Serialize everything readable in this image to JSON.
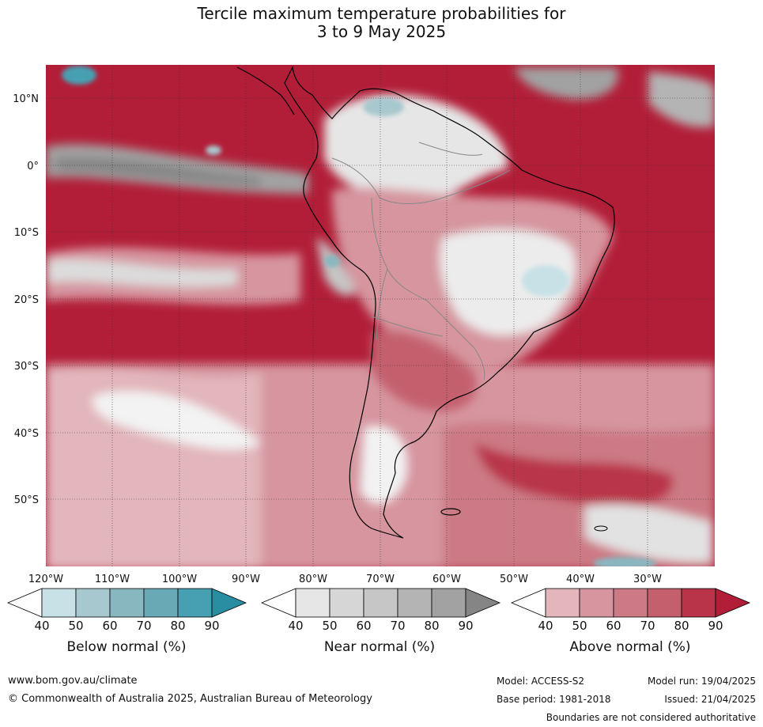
{
  "title": {
    "line1": "Tercile maximum temperature probabilities for",
    "line2": "3 to 9 May 2025"
  },
  "map": {
    "lat_labels": [
      "10°N",
      "0°",
      "10°S",
      "20°S",
      "30°S",
      "40°S",
      "50°S"
    ],
    "lon_labels": [
      "120°W",
      "110°W",
      "100°W",
      "90°W",
      "80°W",
      "70°W",
      "60°W",
      "50°W",
      "40°W",
      "30°W"
    ]
  },
  "colorbars": [
    {
      "name": "Below normal (%)",
      "ticks": [
        "40",
        "50",
        "60",
        "70",
        "80",
        "90"
      ],
      "colors": [
        "#ffffff",
        "#c8e1e7",
        "#a7c8ce",
        "#89b7bf",
        "#68a9b5",
        "#47a0b2",
        "#2a8ea3"
      ]
    },
    {
      "name": "Near normal (%)",
      "ticks": [
        "40",
        "50",
        "60",
        "70",
        "80",
        "90"
      ],
      "colors": [
        "#ffffff",
        "#e6e6e6",
        "#d6d6d6",
        "#c6c6c6",
        "#b4b4b4",
        "#a2a2a2",
        "#858585"
      ]
    },
    {
      "name": "Above normal (%)",
      "ticks": [
        "40",
        "50",
        "60",
        "70",
        "80",
        "90"
      ],
      "colors": [
        "#ffffff",
        "#e2b6bb",
        "#d6959f",
        "#cc7a85",
        "#c4606e",
        "#b93448",
        "#b21e38"
      ]
    }
  ],
  "footer": {
    "website": "www.bom.gov.au/climate",
    "copyright": "© Commonwealth of Australia 2025, Australian Bureau of Meteorology",
    "model": "Model: ACCESS-S2",
    "base_period": "Base period: 1981-2018",
    "model_run": "Model run: 19/04/2025",
    "issued": "Issued: 21/04/2025",
    "disclaimer": "Boundaries are not considered authoritative"
  }
}
